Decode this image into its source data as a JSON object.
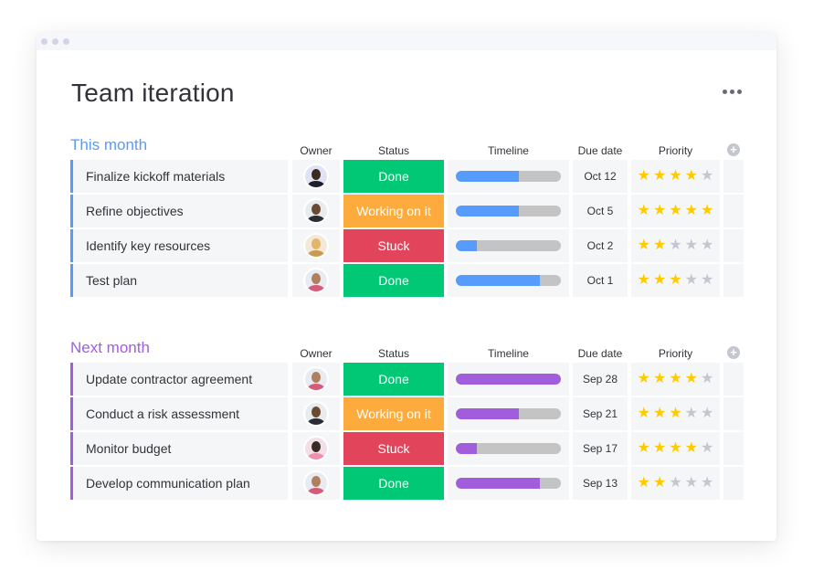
{
  "page": {
    "title": "Team iteration"
  },
  "columns": {
    "owner": "Owner",
    "status": "Status",
    "timeline": "Timeline",
    "due": "Due date",
    "priority": "Priority"
  },
  "colors": {
    "done": "#00c875",
    "working": "#fdab3d",
    "stuck": "#e2445c",
    "group1": "#579bfc",
    "group2": "#a25ddc"
  },
  "groups": [
    {
      "title": "This month",
      "color": "#579bfc",
      "rows": [
        {
          "name": "Finalize kickoff materials",
          "owner": "avatar-dark-curly-hair",
          "status": "Done",
          "status_kind": "done",
          "timeline_fraction": 0.6,
          "due": "Oct 12",
          "priority": 4
        },
        {
          "name": "Refine objectives",
          "owner": "avatar-bald-beard",
          "status": "Working on it",
          "status_kind": "working",
          "timeline_fraction": 0.6,
          "due": "Oct 5",
          "priority": 5
        },
        {
          "name": "Identify key resources",
          "owner": "avatar-blonde-woman",
          "status": "Stuck",
          "status_kind": "stuck",
          "timeline_fraction": 0.2,
          "due": "Oct 2",
          "priority": 2
        },
        {
          "name": "Test plan",
          "owner": "avatar-bearded-man",
          "status": "Done",
          "status_kind": "done",
          "timeline_fraction": 0.8,
          "due": "Oct 1",
          "priority": 3
        }
      ]
    },
    {
      "title": "Next month",
      "color": "#a25ddc",
      "rows": [
        {
          "name": "Update contractor agreement",
          "owner": "avatar-bearded-man",
          "status": "Done",
          "status_kind": "done",
          "timeline_fraction": 1.0,
          "due": "Sep 28",
          "priority": 4
        },
        {
          "name": "Conduct a risk assessment",
          "owner": "avatar-bald-beard",
          "status": "Working on it",
          "status_kind": "working",
          "timeline_fraction": 0.6,
          "due": "Sep 21",
          "priority": 3
        },
        {
          "name": "Monitor budget",
          "owner": "avatar-dark-hair-woman",
          "status": "Stuck",
          "status_kind": "stuck",
          "timeline_fraction": 0.2,
          "due": "Sep 17",
          "priority": 4
        },
        {
          "name": "Develop communication plan",
          "owner": "avatar-bearded-man",
          "status": "Done",
          "status_kind": "done",
          "timeline_fraction": 0.8,
          "due": "Sep 13",
          "priority": 2
        }
      ]
    }
  ]
}
